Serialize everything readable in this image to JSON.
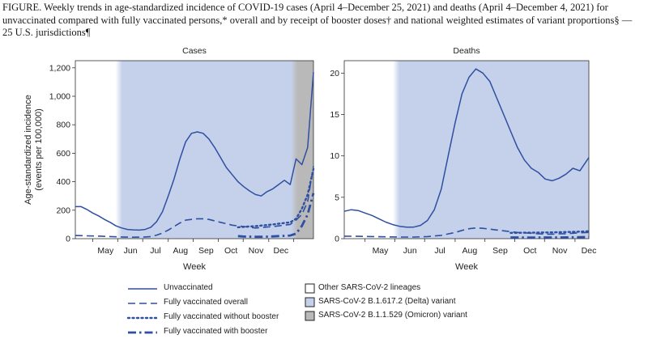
{
  "figure": {
    "title": "FIGURE. Weekly trends in age-standardized incidence of COVID-19 cases (April 4–December 25, 2021) and deaths (April 4–December 4, 2021) for unvaccinated compared with fully vaccinated persons,* overall and by receipt of booster doses† and national weighted estimates of variant proportions§ — 25 U.S. jurisdictions¶"
  },
  "colors": {
    "line": "#2f4fa2",
    "delta_area": "#c5d1ea",
    "omicron_area": "#b9b9b9",
    "other_area": "#ffffff",
    "axis": "#333333"
  },
  "chart_data": [
    {
      "type": "line",
      "title": "Cases",
      "ylabel": "Age-standardized incidence (events per 100,000)",
      "xlabel": "Week",
      "ylim": [
        0,
        1250
      ],
      "yticks": [
        0,
        200,
        400,
        600,
        800,
        1000,
        1200
      ],
      "ytick_labels": [
        "0",
        "200",
        "400",
        "600",
        "800",
        "1,000",
        "1,200"
      ],
      "xlim": [
        0,
        41
      ],
      "xticks": [
        3,
        7.3,
        11.6,
        16,
        20.3,
        24.6,
        28.9,
        33.3,
        37.6
      ],
      "xtick_labels": [
        "May",
        "Jun",
        "Jul",
        "Aug",
        "Sep",
        "Oct",
        "Nov",
        "Dec"
      ],
      "xtick_label_positions": [
        5.2,
        9.5,
        13.8,
        18.1,
        22.5,
        26.8,
        31.1,
        35.4
      ],
      "variant_periods": [
        {
          "variant": "other",
          "x": [
            0,
            7.5
          ]
        },
        {
          "variant": "delta",
          "x": [
            7.5,
            37.7
          ]
        },
        {
          "variant": "omicron",
          "x": [
            37.7,
            41
          ]
        }
      ],
      "series": [
        {
          "name": "Unvaccinated",
          "style": "solid",
          "x": [
            0,
            1,
            2,
            3,
            4,
            5,
            6,
            7,
            8,
            9,
            10,
            11,
            12,
            13,
            14,
            15,
            16,
            17,
            18,
            19,
            20,
            21,
            22,
            23,
            24,
            25,
            26,
            27,
            28,
            29,
            30,
            31,
            32,
            33,
            34,
            35,
            36,
            37,
            38,
            39,
            40,
            41
          ],
          "values": [
            225,
            225,
            205,
            180,
            160,
            135,
            115,
            90,
            75,
            65,
            62,
            60,
            65,
            80,
            120,
            190,
            300,
            420,
            560,
            680,
            740,
            750,
            740,
            700,
            640,
            570,
            500,
            450,
            400,
            365,
            335,
            310,
            300,
            330,
            350,
            380,
            410,
            380,
            560,
            520,
            640,
            1170
          ]
        },
        {
          "name": "Fully vaccinated overall",
          "style": "dashed",
          "x": [
            0,
            2,
            4,
            6,
            8,
            10,
            12,
            13,
            14,
            15,
            16,
            17,
            18,
            19,
            20,
            21,
            22,
            23,
            24,
            25,
            26,
            27,
            28,
            29,
            30,
            31,
            32,
            33,
            34,
            35,
            36,
            37,
            38,
            39,
            40,
            41
          ],
          "values": [
            22,
            20,
            18,
            15,
            12,
            10,
            12,
            15,
            25,
            40,
            60,
            85,
            110,
            130,
            135,
            140,
            140,
            135,
            125,
            115,
            105,
            95,
            90,
            85,
            80,
            75,
            78,
            82,
            85,
            90,
            95,
            100,
            130,
            170,
            260,
            510
          ]
        },
        {
          "name": "Fully vaccinated without booster",
          "style": "dotted",
          "x": [
            28,
            29,
            30,
            31,
            32,
            33,
            34,
            35,
            36,
            37,
            38,
            39,
            40,
            41
          ],
          "values": [
            80,
            83,
            86,
            88,
            92,
            96,
            100,
            105,
            110,
            115,
            140,
            210,
            310,
            490
          ]
        },
        {
          "name": "Fully vaccinated with booster",
          "style": "dashdot",
          "x": [
            28,
            29,
            30,
            31,
            32,
            33,
            34,
            35,
            36,
            37,
            38,
            39,
            40,
            41
          ],
          "values": [
            18,
            15,
            14,
            13,
            13,
            14,
            16,
            18,
            20,
            22,
            35,
            90,
            170,
            320
          ]
        }
      ]
    },
    {
      "type": "line",
      "title": "Deaths",
      "ylabel": "",
      "xlabel": "Week",
      "ylim": [
        0,
        21.5
      ],
      "yticks": [
        0,
        5,
        10,
        15,
        20
      ],
      "ytick_labels": [
        "0",
        "5",
        "10",
        "15",
        "20"
      ],
      "xlim": [
        0,
        35.3
      ],
      "xticks": [
        3,
        7.3,
        11.6,
        16,
        20.3,
        24.6,
        28.9,
        33.3
      ],
      "xtick_labels": [
        "May",
        "Jun",
        "Jul",
        "Aug",
        "Sep",
        "Oct",
        "Nov",
        "Dec"
      ],
      "xtick_label_positions": [
        5.2,
        9.5,
        13.8,
        18.1,
        22.5,
        26.8,
        31.1,
        35.3
      ],
      "variant_periods": [
        {
          "variant": "other",
          "x": [
            0,
            7.5
          ]
        },
        {
          "variant": "delta",
          "x": [
            7.5,
            35.3
          ]
        }
      ],
      "series": [
        {
          "name": "Unvaccinated",
          "style": "solid",
          "x": [
            0,
            1,
            2,
            3,
            4,
            5,
            6,
            7,
            8,
            9,
            10,
            11,
            12,
            13,
            14,
            15,
            16,
            17,
            18,
            19,
            20,
            21,
            22,
            23,
            24,
            25,
            26,
            27,
            28,
            29,
            30,
            31,
            32,
            33,
            34,
            35.3
          ],
          "values": [
            3.3,
            3.5,
            3.4,
            3.1,
            2.8,
            2.4,
            2.0,
            1.7,
            1.5,
            1.4,
            1.4,
            1.6,
            2.2,
            3.5,
            6.0,
            10,
            14,
            17.5,
            19.5,
            20.5,
            20,
            19,
            17,
            15,
            13,
            11,
            9.5,
            8.5,
            8.0,
            7.2,
            7.0,
            7.3,
            7.8,
            8.5,
            8.2,
            9.8
          ]
        },
        {
          "name": "Fully vaccinated overall",
          "style": "dashed",
          "x": [
            0,
            2,
            4,
            6,
            8,
            10,
            12,
            14,
            16,
            17,
            18,
            19,
            20,
            21,
            22,
            23,
            24,
            25,
            26,
            27,
            28,
            29,
            30,
            31,
            32,
            33,
            34,
            35.3
          ],
          "values": [
            0.3,
            0.28,
            0.25,
            0.22,
            0.2,
            0.2,
            0.25,
            0.4,
            0.75,
            1.0,
            1.2,
            1.3,
            1.25,
            1.15,
            1.05,
            0.95,
            0.85,
            0.75,
            0.7,
            0.65,
            0.6,
            0.55,
            0.55,
            0.6,
            0.6,
            0.65,
            0.7,
            0.75
          ]
        },
        {
          "name": "Fully vaccinated without booster",
          "style": "dotted",
          "x": [
            24,
            25,
            26,
            27,
            28,
            29,
            30,
            31,
            32,
            33,
            34,
            35.3
          ],
          "values": [
            0.7,
            0.7,
            0.72,
            0.72,
            0.74,
            0.75,
            0.76,
            0.78,
            0.8,
            0.82,
            0.85,
            0.9
          ]
        },
        {
          "name": "Fully vaccinated with booster",
          "style": "dashdot",
          "x": [
            24,
            25,
            26,
            27,
            28,
            29,
            30,
            31,
            32,
            33,
            34,
            35.3
          ],
          "values": [
            0.15,
            0.15,
            0.14,
            0.14,
            0.14,
            0.15,
            0.15,
            0.15,
            0.16,
            0.17,
            0.18,
            0.2
          ]
        }
      ]
    }
  ],
  "legend": {
    "lines": [
      {
        "label": "Unvaccinated",
        "style": "solid"
      },
      {
        "label": "Fully vaccinated overall",
        "style": "dashed"
      },
      {
        "label": "Fully vaccinated without booster",
        "style": "dotted"
      },
      {
        "label": "Fully vaccinated with booster",
        "style": "dashdot"
      }
    ],
    "variants": [
      {
        "label": "Other SARS-CoV-2 lineages",
        "variant": "other"
      },
      {
        "label": "SARS-CoV-2 B.1.617.2 (Delta) variant",
        "variant": "delta"
      },
      {
        "label": "SARS-CoV-2 B.1.1.529 (Omicron) variant",
        "variant": "omicron"
      }
    ]
  }
}
